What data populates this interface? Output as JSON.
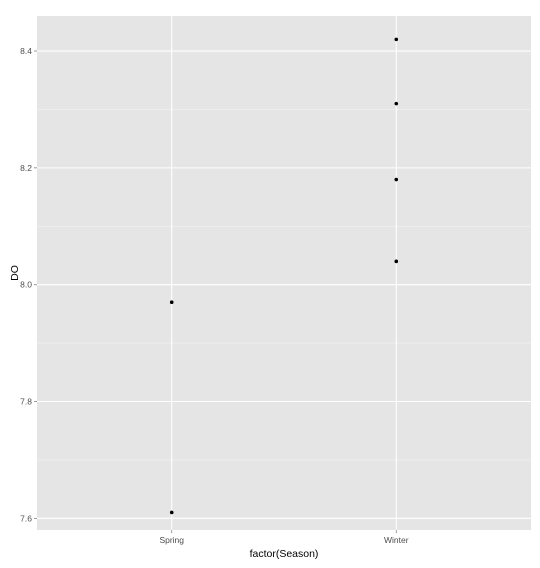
{
  "chart_data": {
    "type": "scatter",
    "title": "",
    "xlabel": "factor(Season)",
    "ylabel": "DO",
    "categories": [
      "Spring",
      "Winter"
    ],
    "x_ticks": [
      "Spring",
      "Winter"
    ],
    "y_ticks": [
      "7.6",
      "7.8",
      "8.0",
      "8.2",
      "8.4"
    ],
    "ylim": [
      7.58,
      8.46
    ],
    "grid": true,
    "panel_background": "#e5e5e5",
    "grid_color": "#ffffff",
    "point_color": "#000000",
    "points": [
      {
        "x": "Spring",
        "y": 7.97
      },
      {
        "x": "Spring",
        "y": 7.61
      },
      {
        "x": "Winter",
        "y": 8.42
      },
      {
        "x": "Winter",
        "y": 8.31
      },
      {
        "x": "Winter",
        "y": 8.18
      },
      {
        "x": "Winter",
        "y": 8.04
      }
    ]
  }
}
